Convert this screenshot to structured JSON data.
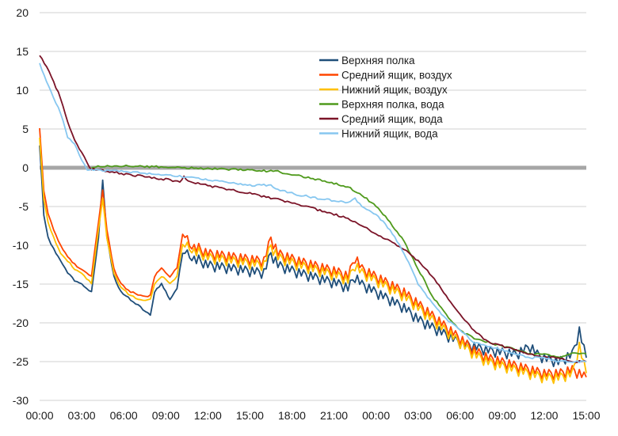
{
  "chart_data": {
    "type": "line",
    "title": "",
    "xlabel": "",
    "ylabel": "",
    "ylim": [
      -30,
      20
    ],
    "y_ticks": [
      20,
      15,
      10,
      5,
      0,
      -5,
      -10,
      -15,
      -20,
      -25,
      -30
    ],
    "x_ticks": [
      "00:00",
      "03:00",
      "06:00",
      "09:00",
      "12:00",
      "15:00",
      "18:00",
      "21:00",
      "00:00",
      "03:00",
      "06:00",
      "09:00",
      "12:00",
      "15:00"
    ],
    "x_range_hours": [
      0,
      39
    ],
    "grid": "horizontal",
    "legend_position": "top-right",
    "series": [
      {
        "name": "Верхняя полка",
        "color": "#1f4e79",
        "points": [
          [
            0,
            3
          ],
          [
            0.3,
            -6
          ],
          [
            0.6,
            -9
          ],
          [
            1.0,
            -10.5
          ],
          [
            1.5,
            -12
          ],
          [
            2.0,
            -13.5
          ],
          [
            2.5,
            -14.5
          ],
          [
            3.0,
            -15
          ],
          [
            3.7,
            -16
          ],
          [
            4.2,
            -9
          ],
          [
            4.5,
            -1.5
          ],
          [
            4.8,
            -9
          ],
          [
            5.3,
            -14
          ],
          [
            5.8,
            -16
          ],
          [
            6.5,
            -17
          ],
          [
            7.2,
            -18
          ],
          [
            7.9,
            -19
          ],
          [
            8.2,
            -16
          ],
          [
            8.7,
            -15
          ],
          [
            9.3,
            -17
          ],
          [
            9.8,
            -15.5
          ],
          [
            10.2,
            -11
          ],
          [
            10.7,
            -11.5
          ],
          [
            12,
            -12.5
          ],
          [
            14,
            -13
          ],
          [
            16,
            -13.5
          ],
          [
            16.5,
            -11
          ],
          [
            17,
            -12.5
          ],
          [
            18.5,
            -13.5
          ],
          [
            20.5,
            -14.5
          ],
          [
            21.5,
            -15
          ],
          [
            22,
            -15.5
          ],
          [
            22.5,
            -14
          ],
          [
            23,
            -15
          ],
          [
            24,
            -16
          ],
          [
            26,
            -18
          ],
          [
            27,
            -19.5
          ],
          [
            28,
            -20.5
          ],
          [
            29,
            -21.5
          ],
          [
            30,
            -22.5
          ],
          [
            31,
            -23
          ],
          [
            32,
            -23.5
          ],
          [
            34,
            -24
          ],
          [
            35,
            -23
          ],
          [
            35.5,
            -24
          ],
          [
            36,
            -24.5
          ],
          [
            37,
            -25
          ],
          [
            38,
            -24
          ],
          [
            38.5,
            -21
          ],
          [
            39,
            -24.5
          ]
        ]
      },
      {
        "name": "Средний ящик, воздух",
        "color": "#ff4500",
        "points": [
          [
            0,
            5
          ],
          [
            0.3,
            -3
          ],
          [
            0.6,
            -6
          ],
          [
            1.0,
            -8
          ],
          [
            1.5,
            -10
          ],
          [
            2.0,
            -11.5
          ],
          [
            2.5,
            -12.5
          ],
          [
            3.0,
            -13
          ],
          [
            3.7,
            -14
          ],
          [
            4.2,
            -7
          ],
          [
            4.5,
            -3
          ],
          [
            4.8,
            -8
          ],
          [
            5.3,
            -13
          ],
          [
            5.8,
            -15
          ],
          [
            6.5,
            -16
          ],
          [
            7.2,
            -16.5
          ],
          [
            7.9,
            -16.5
          ],
          [
            8.2,
            -14
          ],
          [
            8.7,
            -13
          ],
          [
            9.3,
            -14
          ],
          [
            9.8,
            -13
          ],
          [
            10.2,
            -8.5
          ],
          [
            10.7,
            -10
          ],
          [
            12,
            -11
          ],
          [
            14,
            -11.5
          ],
          [
            16,
            -12
          ],
          [
            16.5,
            -9
          ],
          [
            17,
            -11
          ],
          [
            18.5,
            -12
          ],
          [
            20.5,
            -13
          ],
          [
            21.5,
            -13.5
          ],
          [
            22,
            -14
          ],
          [
            22.5,
            -11.5
          ],
          [
            23,
            -13
          ],
          [
            24,
            -14
          ],
          [
            26,
            -16
          ],
          [
            27,
            -17.5
          ],
          [
            28,
            -19
          ],
          [
            29,
            -20.5
          ],
          [
            30,
            -22
          ],
          [
            31,
            -23.5
          ],
          [
            32,
            -24.5
          ],
          [
            34,
            -25.5
          ],
          [
            35,
            -26
          ],
          [
            36,
            -26.5
          ],
          [
            37,
            -26.5
          ],
          [
            38,
            -26
          ],
          [
            39,
            -27
          ]
        ]
      },
      {
        "name": "Нижний ящик, воздух",
        "color": "#ffc000",
        "points": [
          [
            0,
            4
          ],
          [
            0.3,
            -4
          ],
          [
            0.6,
            -7
          ],
          [
            1.0,
            -9
          ],
          [
            1.5,
            -11
          ],
          [
            2.0,
            -12
          ],
          [
            2.5,
            -13
          ],
          [
            3.0,
            -13.5
          ],
          [
            3.7,
            -15
          ],
          [
            4.2,
            -8
          ],
          [
            4.5,
            -4
          ],
          [
            4.8,
            -9
          ],
          [
            5.3,
            -13.5
          ],
          [
            5.8,
            -15.5
          ],
          [
            6.5,
            -16.5
          ],
          [
            7.2,
            -17
          ],
          [
            7.9,
            -17
          ],
          [
            8.2,
            -15
          ],
          [
            8.7,
            -14
          ],
          [
            9.3,
            -15
          ],
          [
            9.8,
            -14
          ],
          [
            10.2,
            -10
          ],
          [
            10.7,
            -10.5
          ],
          [
            12,
            -11.5
          ],
          [
            14,
            -12
          ],
          [
            16,
            -12.5
          ],
          [
            16.5,
            -10
          ],
          [
            17,
            -11.5
          ],
          [
            18.5,
            -12.5
          ],
          [
            20.5,
            -13.5
          ],
          [
            21.5,
            -14
          ],
          [
            22,
            -14.5
          ],
          [
            22.5,
            -12.5
          ],
          [
            23,
            -13.5
          ],
          [
            24,
            -14.5
          ],
          [
            26,
            -16.5
          ],
          [
            27,
            -18
          ],
          [
            28,
            -19.5
          ],
          [
            29,
            -21
          ],
          [
            30,
            -22.5
          ],
          [
            31,
            -24
          ],
          [
            32,
            -25
          ],
          [
            34,
            -26
          ],
          [
            35,
            -26.5
          ],
          [
            36,
            -27
          ],
          [
            37,
            -27
          ],
          [
            38,
            -26.5
          ],
          [
            38.5,
            -23
          ],
          [
            39,
            -26.5
          ]
        ]
      },
      {
        "name": "Верхняя полка, вода",
        "color": "#4f9a1c",
        "points": [
          [
            3.7,
            0
          ],
          [
            4,
            0.2
          ],
          [
            6,
            0.2
          ],
          [
            9,
            0.1
          ],
          [
            12,
            -0.1
          ],
          [
            15,
            -0.3
          ],
          [
            17,
            -0.5
          ],
          [
            19,
            -1.2
          ],
          [
            21,
            -2
          ],
          [
            22,
            -2.5
          ],
          [
            23,
            -3.5
          ],
          [
            24,
            -5
          ],
          [
            25,
            -7
          ],
          [
            26,
            -9.5
          ],
          [
            27,
            -13
          ],
          [
            28,
            -16.5
          ],
          [
            29,
            -19
          ],
          [
            30,
            -21
          ],
          [
            31,
            -22
          ],
          [
            32,
            -22.5
          ],
          [
            33,
            -23
          ],
          [
            34,
            -23.5
          ],
          [
            35,
            -24
          ],
          [
            36,
            -24
          ],
          [
            37,
            -24.5
          ],
          [
            38,
            -24
          ],
          [
            39,
            -24
          ]
        ]
      },
      {
        "name": "Средний ящик, вода",
        "color": "#7b1428",
        "points": [
          [
            0,
            14.5
          ],
          [
            0.5,
            13
          ],
          [
            1.0,
            11
          ],
          [
            1.5,
            9
          ],
          [
            2.0,
            6
          ],
          [
            2.5,
            3.5
          ],
          [
            3.0,
            2
          ],
          [
            3.4,
            0.5
          ],
          [
            3.7,
            -0.2
          ],
          [
            4,
            -0.2
          ],
          [
            6,
            -0.8
          ],
          [
            9,
            -1.5
          ],
          [
            10,
            -1.8
          ],
          [
            10.3,
            -1.2
          ],
          [
            10.6,
            -1.8
          ],
          [
            12,
            -2.3
          ],
          [
            15,
            -3.3
          ],
          [
            18,
            -4.5
          ],
          [
            20,
            -5.5
          ],
          [
            22,
            -6.5
          ],
          [
            23,
            -7.5
          ],
          [
            24,
            -8.5
          ],
          [
            25,
            -9.5
          ],
          [
            26,
            -10.5
          ],
          [
            27,
            -12
          ],
          [
            28,
            -14
          ],
          [
            29,
            -16.5
          ],
          [
            30,
            -19
          ],
          [
            31,
            -21
          ],
          [
            32,
            -22.5
          ],
          [
            33,
            -23
          ],
          [
            34,
            -23.5
          ],
          [
            35,
            -24
          ],
          [
            36,
            -24.5
          ],
          [
            37,
            -24.5
          ],
          [
            38,
            -25
          ],
          [
            39,
            -25
          ]
        ]
      },
      {
        "name": "Нижний ящик, вода",
        "color": "#87c7f0",
        "points": [
          [
            0,
            13.5
          ],
          [
            0.5,
            11
          ],
          [
            1.0,
            9
          ],
          [
            1.5,
            7
          ],
          [
            2.0,
            4
          ],
          [
            2.5,
            3
          ],
          [
            3.0,
            1
          ],
          [
            3.4,
            -0.3
          ],
          [
            3.7,
            -0.3
          ],
          [
            4,
            -0.3
          ],
          [
            6,
            -0.5
          ],
          [
            9,
            -0.9
          ],
          [
            12,
            -1.5
          ],
          [
            15,
            -2.3
          ],
          [
            16.5,
            -2.2
          ],
          [
            17,
            -2.8
          ],
          [
            18,
            -3.3
          ],
          [
            20,
            -4
          ],
          [
            22,
            -4.5
          ],
          [
            22.5,
            -4
          ],
          [
            23,
            -5
          ],
          [
            24,
            -6
          ],
          [
            25,
            -8
          ],
          [
            26,
            -11
          ],
          [
            27,
            -15
          ],
          [
            28,
            -17.5
          ],
          [
            29,
            -19.5
          ],
          [
            30,
            -21
          ],
          [
            31,
            -22.5
          ],
          [
            32,
            -23
          ],
          [
            33,
            -23.5
          ],
          [
            34,
            -24
          ],
          [
            35,
            -24.5
          ],
          [
            36,
            -24.5
          ],
          [
            37,
            -25
          ],
          [
            38,
            -25
          ],
          [
            39,
            -25
          ]
        ]
      }
    ]
  }
}
